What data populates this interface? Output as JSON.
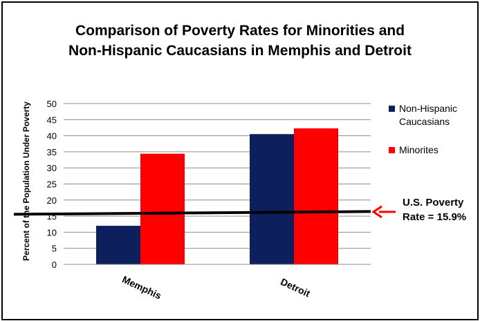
{
  "chart_data": {
    "type": "bar",
    "title_lines": [
      "Comparison of Poverty Rates for Minorities and",
      "Non-Hispanic Caucasians in Memphis and Detroit"
    ],
    "ylabel": "Percent of the Population Under Poverty",
    "xlabel": "",
    "categories": [
      "Memphis",
      "Detroit"
    ],
    "series": [
      {
        "name": "Non-Hispanic Caucasians",
        "color": "#0d1f5c",
        "values": [
          12,
          40.5
        ]
      },
      {
        "name": "Minorites",
        "color": "#ff0000",
        "values": [
          34.4,
          42.3
        ]
      }
    ],
    "ylim": [
      0,
      50
    ],
    "yticks": [
      "0",
      "5",
      "10",
      "15",
      "20",
      "25",
      "30",
      "35",
      "40",
      "45",
      "50"
    ],
    "grid": true,
    "legend_position": "right",
    "reference_line": {
      "value": 15.9,
      "color": "#000000"
    },
    "annotation_lines": [
      "U.S. Poverty",
      "Rate = 15.9%"
    ],
    "annotation_arrow_color": "#ff0000"
  }
}
